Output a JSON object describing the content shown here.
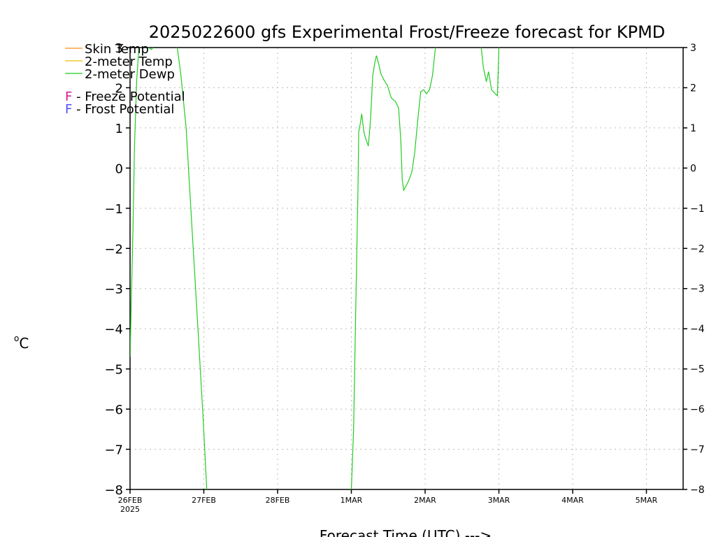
{
  "chart_data": {
    "type": "line",
    "title": "2025022600 gfs Experimental Frost/Freeze forecast for KPMD",
    "xlabel": "Forecast Time (UTC) --->",
    "ylabel_unit": "C",
    "ylabel_degree": "o",
    "ylim": [
      -8,
      3
    ],
    "xlim_days": [
      0,
      7.5
    ],
    "grid": true,
    "y_ticks": [
      "−8",
      "−7",
      "−6",
      "−5",
      "−4",
      "−3",
      "−2",
      "−1",
      "0",
      "1",
      "2",
      "3"
    ],
    "x_ticks": [
      {
        "label": "26FEB",
        "day": 0
      },
      {
        "label": "27FEB",
        "day": 1
      },
      {
        "label": "28FEB",
        "day": 2
      },
      {
        "label": "1MAR",
        "day": 3
      },
      {
        "label": "2MAR",
        "day": 4
      },
      {
        "label": "3MAR",
        "day": 5
      },
      {
        "label": "4MAR",
        "day": 6
      },
      {
        "label": "5MAR",
        "day": 7
      }
    ],
    "x_year": "2025",
    "legend": {
      "placement": "top-left",
      "series": [
        {
          "name": "Skin Temp",
          "color": "#ff8c1a"
        },
        {
          "name": "2-meter Temp",
          "color": "#e8c000"
        },
        {
          "name": "2-meter Dewp",
          "color": "#22cc22"
        }
      ],
      "markers": [
        {
          "symbol": "F",
          "text": " - Freeze Potential",
          "color": "#cc1a99"
        },
        {
          "symbol": "F",
          "text": " - Frost Potential",
          "color": "#4d4dff"
        }
      ]
    },
    "series": [
      {
        "name": "2-meter Dewp",
        "color": "#22cc22",
        "segments": [
          [
            [
              0.0,
              -4.7
            ],
            [
              0.04,
              -1.5
            ],
            [
              0.06,
              0.5
            ],
            [
              0.09,
              2.2
            ],
            [
              0.12,
              3.0
            ]
          ],
          [
            [
              0.25,
              3.0
            ],
            [
              0.29,
              2.95
            ],
            [
              0.31,
              3.0
            ]
          ],
          [
            [
              0.64,
              3.0
            ],
            [
              0.69,
              2.3
            ],
            [
              0.76,
              1.0
            ],
            [
              0.84,
              -1.5
            ],
            [
              0.92,
              -4.0
            ],
            [
              0.99,
              -6.2
            ],
            [
              1.04,
              -8.0
            ]
          ],
          [
            [
              3.0,
              -8.0
            ],
            [
              3.03,
              -6.5
            ],
            [
              3.06,
              -3.5
            ],
            [
              3.09,
              -0.5
            ],
            [
              3.1,
              0.9
            ],
            [
              3.12,
              1.1
            ],
            [
              3.14,
              1.35
            ],
            [
              3.17,
              0.9
            ],
            [
              3.2,
              0.7
            ],
            [
              3.23,
              0.55
            ],
            [
              3.26,
              1.2
            ],
            [
              3.29,
              2.3
            ],
            [
              3.32,
              2.65
            ],
            [
              3.34,
              2.8
            ],
            [
              3.37,
              2.6
            ],
            [
              3.4,
              2.35
            ],
            [
              3.44,
              2.2
            ],
            [
              3.49,
              2.05
            ],
            [
              3.54,
              1.75
            ],
            [
              3.6,
              1.65
            ],
            [
              3.64,
              1.5
            ],
            [
              3.67,
              0.7
            ],
            [
              3.69,
              -0.3
            ],
            [
              3.71,
              -0.55
            ],
            [
              3.74,
              -0.45
            ],
            [
              3.78,
              -0.3
            ],
            [
              3.82,
              -0.1
            ],
            [
              3.86,
              0.4
            ],
            [
              3.9,
              1.2
            ],
            [
              3.94,
              1.9
            ],
            [
              3.98,
              1.95
            ],
            [
              4.02,
              1.85
            ],
            [
              4.06,
              1.95
            ],
            [
              4.1,
              2.3
            ],
            [
              4.14,
              3.0
            ]
          ],
          [
            [
              4.76,
              3.0
            ],
            [
              4.79,
              2.5
            ],
            [
              4.83,
              2.15
            ],
            [
              4.86,
              2.4
            ],
            [
              4.9,
              1.95
            ],
            [
              4.95,
              1.85
            ],
            [
              4.98,
              1.8
            ],
            [
              5.0,
              3.0
            ]
          ]
        ]
      }
    ]
  }
}
